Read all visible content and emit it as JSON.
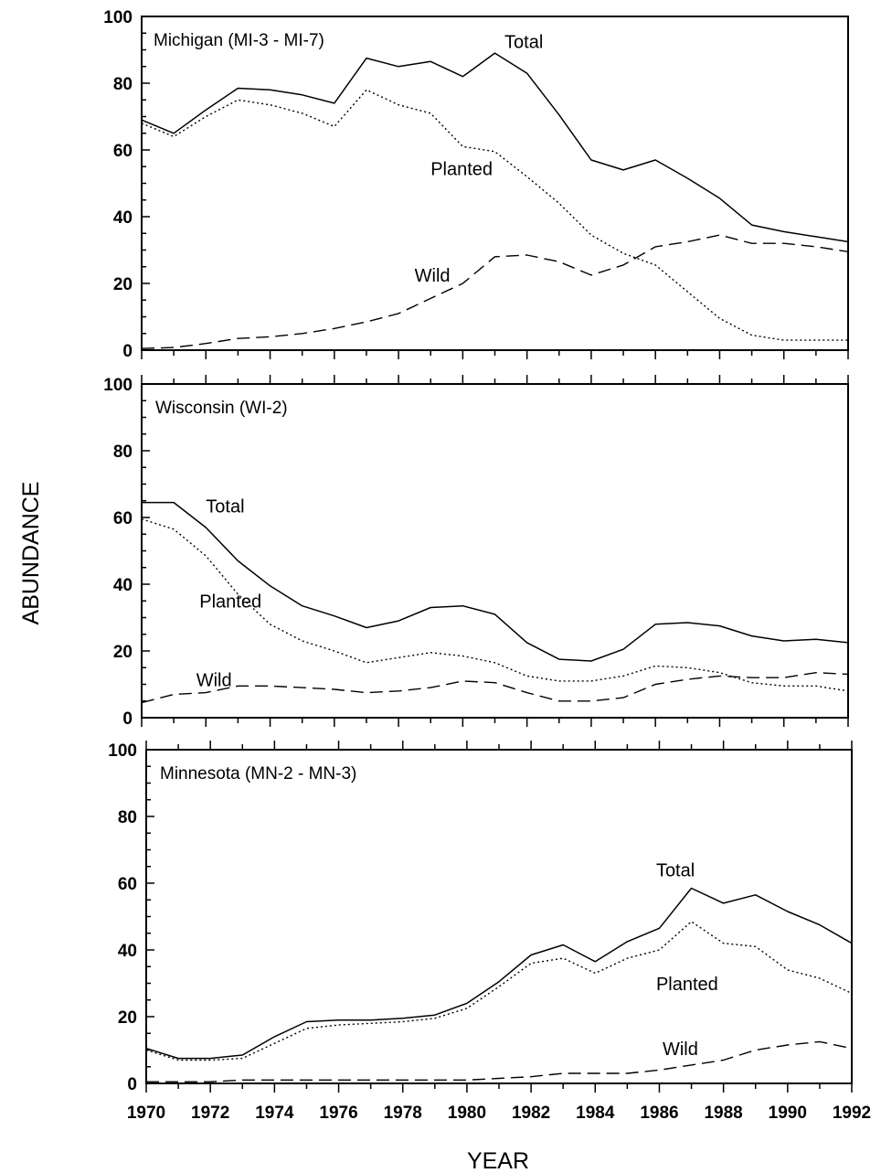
{
  "chart_data": {
    "type": "line",
    "xlabel": "YEAR",
    "ylabel": "ABUNDANCE",
    "xlim": [
      1970,
      1992
    ],
    "x_ticks": [
      "1970",
      "1972",
      "1974",
      "1976",
      "1978",
      "1980",
      "1982",
      "1984",
      "1986",
      "1988",
      "1990",
      "1992"
    ],
    "panels": [
      {
        "title": "Michigan (MI-3 - MI-7)",
        "ylim": [
          0,
          100
        ],
        "y_ticks": [
          "0",
          "20",
          "40",
          "60",
          "80",
          "100"
        ],
        "x": [
          1970,
          1971,
          1972,
          1973,
          1974,
          1975,
          1976,
          1977,
          1978,
          1979,
          1980,
          1981,
          1982,
          1983,
          1984,
          1985,
          1986,
          1987,
          1988,
          1989,
          1990,
          1991,
          1992
        ],
        "series": [
          {
            "name": "Total",
            "style": "solid",
            "values": [
              69,
              65,
              72,
              78.5,
              78,
              76.5,
              74,
              87.5,
              85,
              86.5,
              82,
              89,
              83,
              70.5,
              57,
              54,
              57,
              51.5,
              45.5,
              37.5,
              35.5,
              34,
              32.5
            ]
          },
          {
            "name": "Planted",
            "style": "dotted",
            "values": [
              68,
              64,
              70,
              75,
              73.5,
              71,
              67,
              78,
              73.5,
              71,
              61,
              59.5,
              52,
              44,
              34.5,
              29,
              25.5,
              17.5,
              9.5,
              4.5,
              3,
              3,
              3
            ]
          },
          {
            "name": "Wild",
            "style": "dashed",
            "values": [
              0.5,
              0.8,
              2,
              3.5,
              4,
              5,
              6.5,
              8.5,
              11,
              15.5,
              20,
              28,
              28.5,
              26.5,
              22.5,
              25.5,
              31,
              32.5,
              34.5,
              32,
              32,
              31,
              29.5
            ]
          }
        ]
      },
      {
        "title": "Wisconsin (WI-2)",
        "ylim": [
          0,
          100
        ],
        "y_ticks": [
          "0",
          "20",
          "40",
          "60",
          "80",
          "100"
        ],
        "x": [
          1970,
          1971,
          1972,
          1973,
          1974,
          1975,
          1976,
          1977,
          1978,
          1979,
          1980,
          1981,
          1982,
          1983,
          1984,
          1985,
          1986,
          1987,
          1988,
          1989,
          1990,
          1991,
          1992
        ],
        "series": [
          {
            "name": "Total",
            "style": "solid",
            "values": [
              64.5,
              64.5,
              57,
              47,
              39.5,
              33.5,
              30.5,
              27,
              29,
              33,
              33.5,
              31,
              22.5,
              17.5,
              17,
              20.5,
              28,
              28.5,
              27.5,
              24.5,
              23,
              23.5,
              22.5
            ]
          },
          {
            "name": "Planted",
            "style": "dotted",
            "values": [
              59.5,
              56.5,
              48.5,
              37,
              28,
              23,
              20,
              16.5,
              18,
              19.5,
              18.5,
              16.5,
              12.5,
              11,
              11,
              12.5,
              15.5,
              15,
              13.5,
              10.5,
              9.5,
              9.5,
              8
            ]
          },
          {
            "name": "Wild",
            "style": "dashed",
            "values": [
              4.5,
              7,
              7.5,
              9.5,
              9.5,
              9,
              8.5,
              7.5,
              8,
              9,
              11,
              10.5,
              7.5,
              5,
              5,
              6,
              10,
              11.5,
              12.5,
              12,
              12,
              13.5,
              13
            ]
          }
        ]
      },
      {
        "title": "Minnesota (MN-2 - MN-3)",
        "ylim": [
          0,
          100
        ],
        "y_ticks": [
          "0",
          "20",
          "40",
          "60",
          "80",
          "100"
        ],
        "x": [
          1970,
          1971,
          1972,
          1973,
          1974,
          1975,
          1976,
          1977,
          1978,
          1979,
          1980,
          1981,
          1982,
          1983,
          1984,
          1985,
          1986,
          1987,
          1988,
          1989,
          1990,
          1991,
          1992
        ],
        "series": [
          {
            "name": "Total",
            "style": "solid",
            "values": [
              10.5,
              7.5,
              7.5,
              8.5,
              14,
              18.5,
              19,
              19,
              19.5,
              20.5,
              24,
              30.5,
              38.5,
              41.5,
              36.5,
              42.5,
              46.5,
              58.5,
              54,
              56.5,
              51.5,
              47.5,
              42
            ]
          },
          {
            "name": "Planted",
            "style": "dotted",
            "values": [
              10,
              7,
              7,
              7.5,
              12,
              16.5,
              17.5,
              18,
              18.5,
              19.5,
              22.5,
              29,
              36,
              37.5,
              33,
              37.5,
              40,
              48.5,
              42,
              41,
              34,
              31.5,
              27
            ]
          },
          {
            "name": "Wild",
            "style": "dashed",
            "values": [
              0.5,
              0.5,
              0.5,
              1,
              1,
              1,
              1,
              1,
              1,
              1,
              1,
              1.5,
              2,
              3,
              3,
              3,
              4,
              5.5,
              7,
              10,
              11.5,
              12.5,
              10.5
            ]
          }
        ]
      }
    ]
  }
}
